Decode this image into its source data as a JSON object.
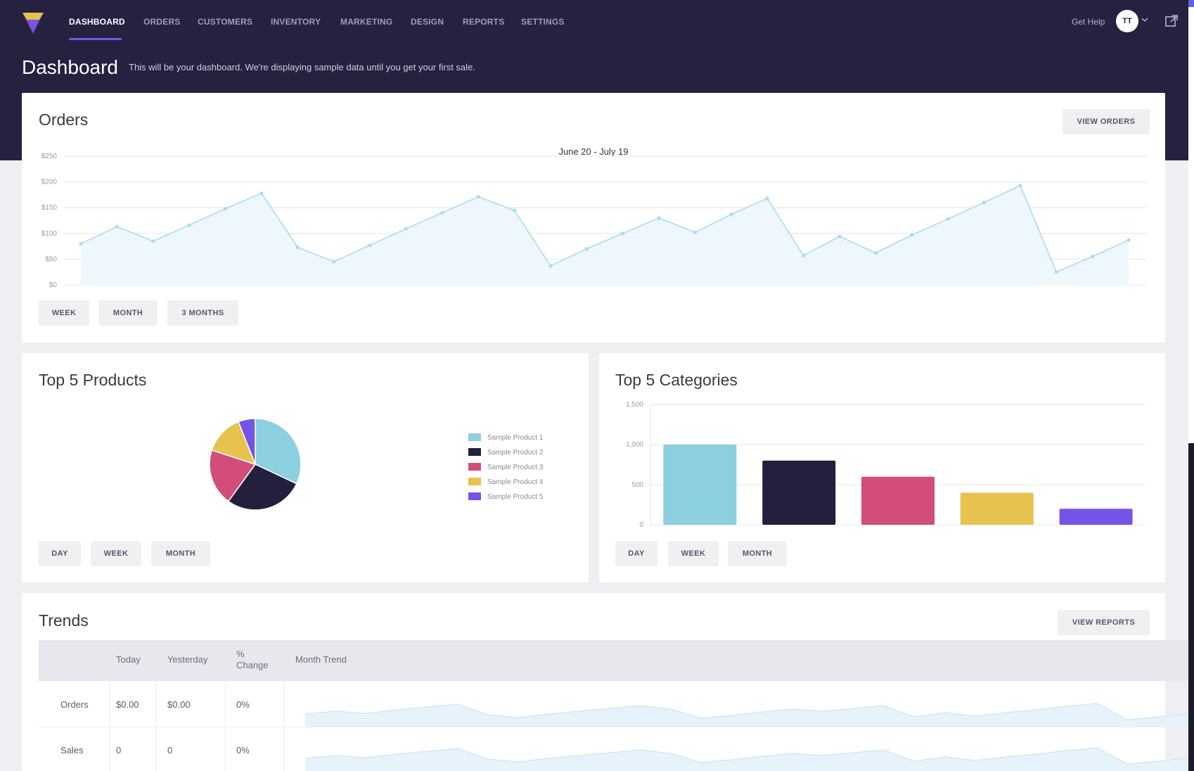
{
  "nav": {
    "items": [
      {
        "label": "DASHBOARD",
        "active": true
      },
      {
        "label": "ORDERS",
        "active": false
      },
      {
        "label": "CUSTOMERS",
        "active": false
      },
      {
        "label": "INVENTORY",
        "active": false
      },
      {
        "label": "MARKETING",
        "active": false
      },
      {
        "label": "DESIGN",
        "active": false
      },
      {
        "label": "REPORTS",
        "active": false
      },
      {
        "label": "SETTINGS",
        "active": false
      }
    ],
    "help_label": "Get Help",
    "avatar_initials": "TT",
    "logo_icon": "logo-gem-icon",
    "external_icon": "external-link-icon"
  },
  "header": {
    "title": "Dashboard",
    "subtitle": "This will be your dashboard. We're displaying sample data until you get your first sale."
  },
  "orders": {
    "title": "Orders",
    "view_button": "VIEW ORDERS",
    "range_buttons": [
      "WEEK",
      "MONTH",
      "3 MONTHS"
    ]
  },
  "products": {
    "title": "Top 5 Products",
    "range_buttons": [
      "DAY",
      "WEEK",
      "MONTH"
    ]
  },
  "categories": {
    "title": "Top 5 Categories",
    "range_buttons": [
      "DAY",
      "WEEK",
      "MONTH"
    ]
  },
  "trends": {
    "title": "Trends",
    "view_button": "VIEW REPORTS",
    "columns": [
      "Today",
      "Yesterday",
      "% Change",
      "Month Trend"
    ],
    "rows": [
      {
        "label": "Orders",
        "today": "$0.00",
        "yesterday": "$0.00",
        "change": "0%"
      },
      {
        "label": "Sales",
        "today": "0",
        "yesterday": "0",
        "change": "0%"
      }
    ]
  },
  "colors": {
    "header_bg": "#25213f",
    "accent": "#6e5be8",
    "line": "#a9dcf0",
    "teal": "#8ccfde",
    "navy": "#23203d",
    "pink": "#d24d79",
    "yellow": "#e8c24f",
    "purple": "#7553e6"
  },
  "chart_data": [
    {
      "type": "area",
      "title": "June 20 - July 19",
      "y_ticks": [
        "$250",
        "$200",
        "$150",
        "$100",
        "$50",
        "$0"
      ],
      "ylim": [
        0,
        250
      ],
      "grid": true,
      "series": [
        {
          "values": [
            80,
            113,
            85,
            116,
            148,
            178,
            73,
            45,
            77,
            109,
            140,
            171,
            145,
            37,
            70,
            100,
            130,
            102,
            137,
            168,
            57,
            94,
            62,
            97,
            128,
            160,
            193,
            25,
            55,
            87
          ]
        }
      ]
    },
    {
      "type": "pie",
      "series": [
        {
          "name": "Sample Product 1",
          "value": 32
        },
        {
          "name": "Sample Product 2",
          "value": 28
        },
        {
          "name": "Sample Product 3",
          "value": 20
        },
        {
          "name": "Sample Product 4",
          "value": 14
        },
        {
          "name": "Sample Product 5",
          "value": 6
        }
      ],
      "legend": "right"
    },
    {
      "type": "bar",
      "categories": [
        "",
        "",
        "",
        "",
        ""
      ],
      "values": [
        1000,
        800,
        600,
        400,
        200
      ],
      "y_ticks": [
        "1,500",
        "1,000",
        "500",
        "0"
      ],
      "ylim": [
        0,
        1500
      ],
      "grid": true
    }
  ]
}
